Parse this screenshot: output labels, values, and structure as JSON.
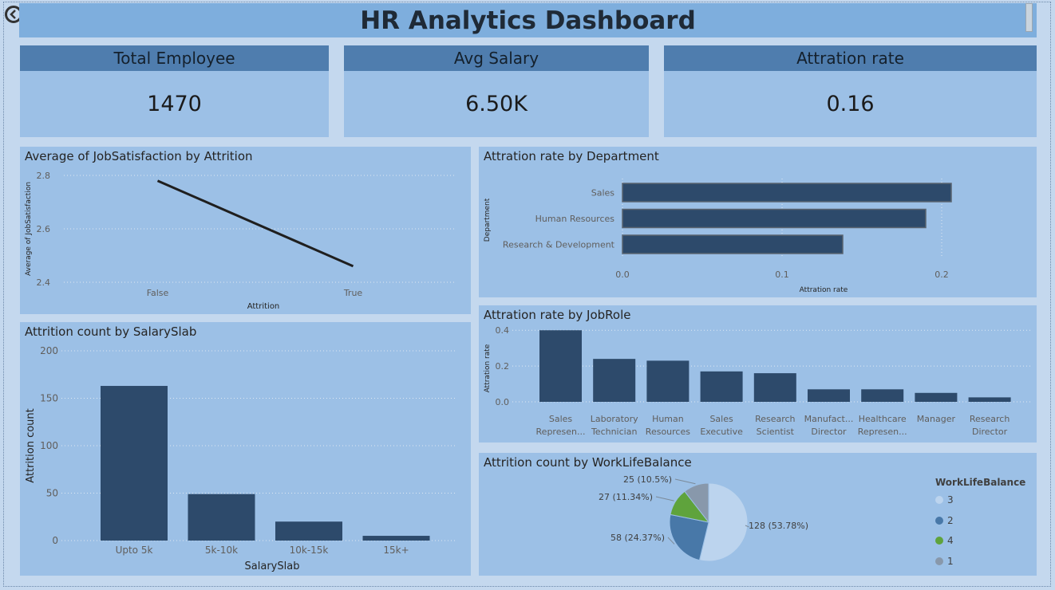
{
  "header": {
    "title": "HR Analytics Dashboard"
  },
  "kpis": [
    {
      "label": "Total Employee",
      "value": "1470"
    },
    {
      "label": "Avg Salary",
      "value": "6.50K"
    },
    {
      "label": "Attration rate",
      "value": "0.16"
    }
  ],
  "colors": {
    "bar": "#2d4a6b",
    "panel": "#9cc0e6",
    "title": "#7eaedd",
    "kpi_head": "#4f7dae"
  },
  "chart_data": [
    {
      "id": "jobsat",
      "type": "line",
      "title": "Average of JobSatisfaction by Attrition",
      "categories": [
        "False",
        "True"
      ],
      "values": [
        2.78,
        2.46
      ],
      "xlabel": "Attrition",
      "ylabel": "Average of JobSatisfaction",
      "ylim": [
        2.4,
        2.8
      ],
      "yticks": [
        "2.4",
        "2.6",
        "2.8"
      ],
      "ytick_values": [
        2.4,
        2.6,
        2.8
      ]
    },
    {
      "id": "dept",
      "type": "bar",
      "orientation": "horizontal",
      "title": "Attration rate by Department",
      "categories": [
        "Sales",
        "Human Resources",
        "Research & Development"
      ],
      "values": [
        0.206,
        0.19,
        0.138
      ],
      "xlabel": "Attration rate",
      "ylabel": "Department",
      "xlim": [
        0,
        0.21
      ],
      "xticks": [
        "0.0",
        "0.1",
        "0.2"
      ],
      "xtick_values": [
        0,
        0.1,
        0.2
      ]
    },
    {
      "id": "jobrole",
      "type": "bar",
      "title": "Attration rate by JobRole",
      "categories": [
        [
          "Sales",
          "Represen..."
        ],
        [
          "Laboratory",
          "Technician"
        ],
        [
          "Human",
          "Resources"
        ],
        [
          "Sales",
          "Executive"
        ],
        [
          "Research",
          "Scientist"
        ],
        [
          "Manufact...",
          "Director"
        ],
        [
          "Healthcare",
          "Represen..."
        ],
        [
          "Manager"
        ],
        [
          "Research",
          "Director"
        ]
      ],
      "values": [
        0.4,
        0.24,
        0.23,
        0.17,
        0.16,
        0.07,
        0.07,
        0.05,
        0.025
      ],
      "xlabel": "",
      "ylabel": "Attration rate",
      "ylim": [
        0,
        0.45
      ],
      "yticks": [
        "0.0",
        "0.2",
        "0.4"
      ],
      "ytick_values": [
        0,
        0.2,
        0.4
      ]
    },
    {
      "id": "salary",
      "type": "bar",
      "title": "Attrition count by SalarySlab",
      "categories": [
        "Upto 5k",
        "5k-10k",
        "10k-15k",
        "15k+"
      ],
      "values": [
        163,
        49,
        20,
        5
      ],
      "xlabel": "SalarySlab",
      "ylabel": "Attrition count",
      "ylim": [
        0,
        200
      ],
      "yticks": [
        "0",
        "50",
        "100",
        "150",
        "200"
      ],
      "ytick_values": [
        0,
        50,
        100,
        150,
        200
      ]
    },
    {
      "id": "wlb",
      "type": "pie",
      "title": "Attrition count by WorkLifeBalance",
      "legend_title": "WorkLifeBalance",
      "slices": [
        {
          "name": "3",
          "value": 128,
          "label": "128 (53.78%)",
          "color": "#bcd4ee"
        },
        {
          "name": "2",
          "value": 58,
          "label": "58 (24.37%)",
          "color": "#4878a8"
        },
        {
          "name": "4",
          "value": 27,
          "label": "27 (11.34%)",
          "color": "#5fa33c"
        },
        {
          "name": "1",
          "value": 25,
          "label": "25 (10.5%)",
          "color": "#8898ab"
        }
      ]
    }
  ]
}
